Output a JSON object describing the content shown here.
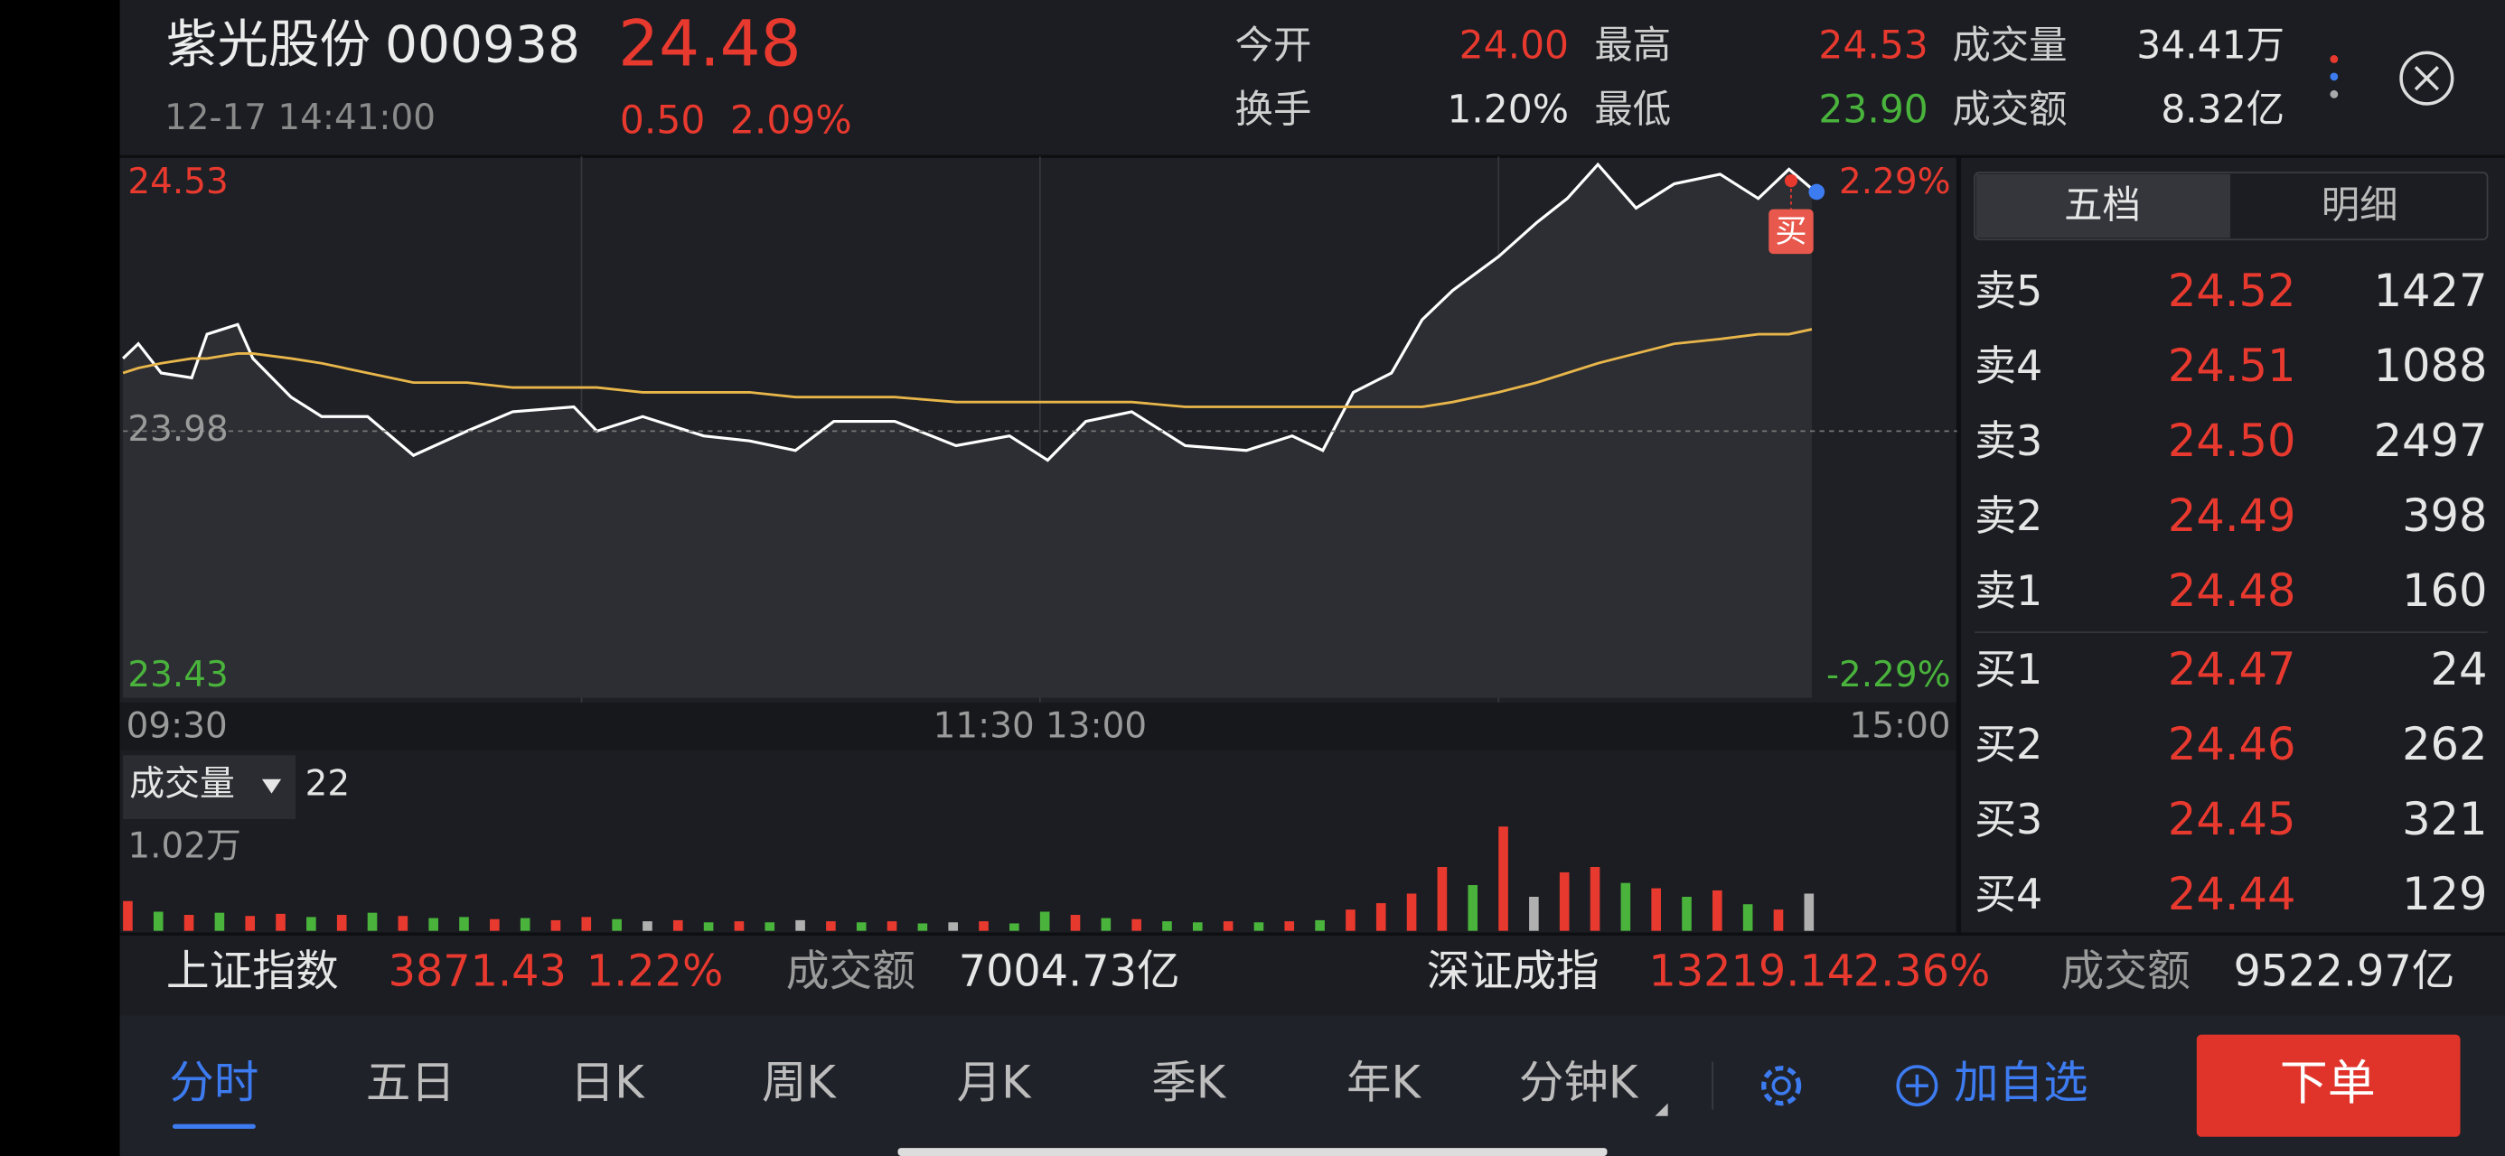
{
  "header": {
    "name": "紫光股份",
    "code": "000938",
    "price": "24.48",
    "change": "0.50",
    "change_pct": "2.09%",
    "time": "12-17 14:41:00",
    "stats": [
      {
        "label": "今开",
        "value": "24.00",
        "color": "#e8392f"
      },
      {
        "label": "最高",
        "value": "24.53",
        "color": "#e8392f"
      },
      {
        "label": "成交量",
        "value": "34.41万",
        "color": "#e6e6e6"
      },
      {
        "label": "换手",
        "value": "1.20%",
        "color": "#e6e6e6"
      },
      {
        "label": "最低",
        "value": "23.90",
        "color": "#49b33c"
      },
      {
        "label": "成交额",
        "value": "8.32亿",
        "color": "#e6e6e6"
      }
    ]
  },
  "chart_data": [
    {
      "type": "line",
      "annotation": "买",
      "xlim": [
        0,
        240
      ],
      "xticks": [
        {
          "value": 0,
          "label": "09:30"
        },
        {
          "value": 120,
          "label": "11:30 13:00"
        },
        {
          "value": 240,
          "label": "15:00"
        }
      ],
      "grid_x": [
        60,
        120,
        180
      ],
      "ylim": [
        23.43,
        24.53
      ],
      "yticks": [
        24.53,
        23.98,
        23.43
      ],
      "ytick_colors": [
        "#e8392f",
        "#9a9a9a",
        "#49b33c"
      ],
      "y2lim": [
        -2.29,
        2.29
      ],
      "y2ticks": [
        {
          "value": 2.29,
          "label": "2.29%"
        },
        {
          "value": -2.29,
          "label": "-2.29%"
        }
      ],
      "y2tick_colors": [
        "#e8392f",
        "#49b33c"
      ],
      "x": [
        0,
        2,
        5,
        9,
        11,
        15,
        17,
        22,
        26,
        32,
        38,
        45,
        51,
        59,
        62,
        68,
        76,
        82,
        88,
        93,
        101,
        109,
        116,
        121,
        126,
        132,
        139,
        147,
        153,
        157,
        161,
        166,
        170,
        174,
        180,
        185,
        189,
        193,
        198,
        203,
        209,
        214,
        218,
        221
      ],
      "series": [
        {
          "color": "#ffffff",
          "values": [
            24.13,
            24.16,
            24.1,
            24.09,
            24.18,
            24.2,
            24.13,
            24.05,
            24.01,
            24.01,
            23.93,
            23.98,
            24.02,
            24.03,
            23.98,
            24.01,
            23.97,
            23.96,
            23.94,
            24.0,
            24.0,
            23.95,
            23.97,
            23.92,
            24.0,
            24.02,
            23.95,
            23.94,
            23.97,
            23.94,
            24.06,
            24.1,
            24.21,
            24.27,
            24.34,
            24.41,
            24.46,
            24.53,
            24.44,
            24.49,
            24.51,
            24.46,
            24.52,
            24.48
          ]
        },
        {
          "color": "#e8b64a",
          "values": [
            24.1,
            24.11,
            24.12,
            24.13,
            24.13,
            24.14,
            24.14,
            24.13,
            24.12,
            24.1,
            24.08,
            24.08,
            24.07,
            24.07,
            24.07,
            24.06,
            24.06,
            24.06,
            24.05,
            24.05,
            24.05,
            24.04,
            24.04,
            24.04,
            24.04,
            24.04,
            24.03,
            24.03,
            24.03,
            24.03,
            24.03,
            24.03,
            24.03,
            24.04,
            24.06,
            24.08,
            24.1,
            24.12,
            24.14,
            24.16,
            24.17,
            24.18,
            24.18,
            24.19
          ]
        }
      ]
    },
    {
      "type": "bar",
      "title": "成交量",
      "current_value": 22,
      "xlim": [
        0,
        240
      ],
      "ylim": [
        0,
        10200
      ],
      "yticks": [
        {
          "value": 10200,
          "label": "1.02万"
        }
      ],
      "x": [
        0,
        4,
        8,
        12,
        16,
        20,
        24,
        28,
        32,
        36,
        40,
        44,
        48,
        52,
        56,
        60,
        64,
        68,
        72,
        76,
        80,
        84,
        88,
        92,
        96,
        100,
        104,
        108,
        112,
        116,
        120,
        124,
        128,
        132,
        136,
        140,
        144,
        148,
        152,
        156,
        160,
        164,
        168,
        172,
        176,
        180,
        184,
        188,
        192,
        196,
        200,
        204,
        208,
        212,
        216,
        220
      ],
      "values": [
        2800,
        1800,
        1500,
        1700,
        1400,
        1600,
        1300,
        1500,
        1700,
        1400,
        1200,
        1300,
        1100,
        1200,
        1000,
        1300,
        1100,
        900,
        1000,
        800,
        900,
        800,
        1000,
        900,
        800,
        900,
        700,
        800,
        900,
        700,
        1800,
        1500,
        1200,
        1100,
        900,
        800,
        900,
        800,
        900,
        1000,
        2000,
        2600,
        3500,
        6000,
        4300,
        9800,
        3200,
        5500,
        6000,
        4500,
        4000,
        3200,
        3800,
        2500,
        2000,
        3500
      ],
      "colors": [
        "#e8392f",
        "#49b33c",
        "#e8392f",
        "#49b33c",
        "#e8392f",
        "#e8392f",
        "#49b33c",
        "#e8392f",
        "#49b33c",
        "#e8392f",
        "#49b33c",
        "#49b33c",
        "#e8392f",
        "#49b33c",
        "#e8392f",
        "#e8392f",
        "#49b33c",
        "#b0b0b0",
        "#e8392f",
        "#49b33c",
        "#e8392f",
        "#49b33c",
        "#b0b0b0",
        "#e8392f",
        "#49b33c",
        "#e8392f",
        "#49b33c",
        "#b0b0b0",
        "#e8392f",
        "#49b33c",
        "#49b33c",
        "#e8392f",
        "#49b33c",
        "#e8392f",
        "#49b33c",
        "#49b33c",
        "#e8392f",
        "#49b33c",
        "#e8392f",
        "#49b33c",
        "#e8392f",
        "#e8392f",
        "#e8392f",
        "#e8392f",
        "#49b33c",
        "#e8392f",
        "#b0b0b0",
        "#e8392f",
        "#e8392f",
        "#49b33c",
        "#e8392f",
        "#49b33c",
        "#e8392f",
        "#49b33c",
        "#e8392f",
        "#b0b0b0"
      ]
    }
  ],
  "order_book": {
    "tabs": [
      "五档",
      "明细"
    ],
    "rows": [
      {
        "label": "卖5",
        "price": "24.52",
        "volume": 1427
      },
      {
        "label": "卖4",
        "price": "24.51",
        "volume": 1088
      },
      {
        "label": "卖3",
        "price": "24.50",
        "volume": 2497
      },
      {
        "label": "卖2",
        "price": "24.49",
        "volume": 398
      },
      {
        "label": "卖1",
        "price": "24.48",
        "volume": 160
      },
      {
        "label": "买1",
        "price": "24.47",
        "volume": 24
      },
      {
        "label": "买2",
        "price": "24.46",
        "volume": 262
      },
      {
        "label": "买3",
        "price": "24.45",
        "volume": 321
      },
      {
        "label": "买4",
        "price": "24.44",
        "volume": 129
      }
    ]
  },
  "index_bar": [
    {
      "name": "上证指数",
      "value": "3871.43",
      "change_pct": "1.22%",
      "turnover_label": "成交额",
      "turnover": "7004.73亿"
    },
    {
      "name": "深证成指",
      "value": "13219.14",
      "change_pct": "2.36%",
      "turnover_label": "成交额",
      "turnover": "9522.97亿"
    }
  ],
  "tabs": [
    "分时",
    "五日",
    "日K",
    "周K",
    "月K",
    "季K",
    "年K",
    "分钟K"
  ],
  "actions": {
    "watchlist": "加自选",
    "order": "下单"
  }
}
